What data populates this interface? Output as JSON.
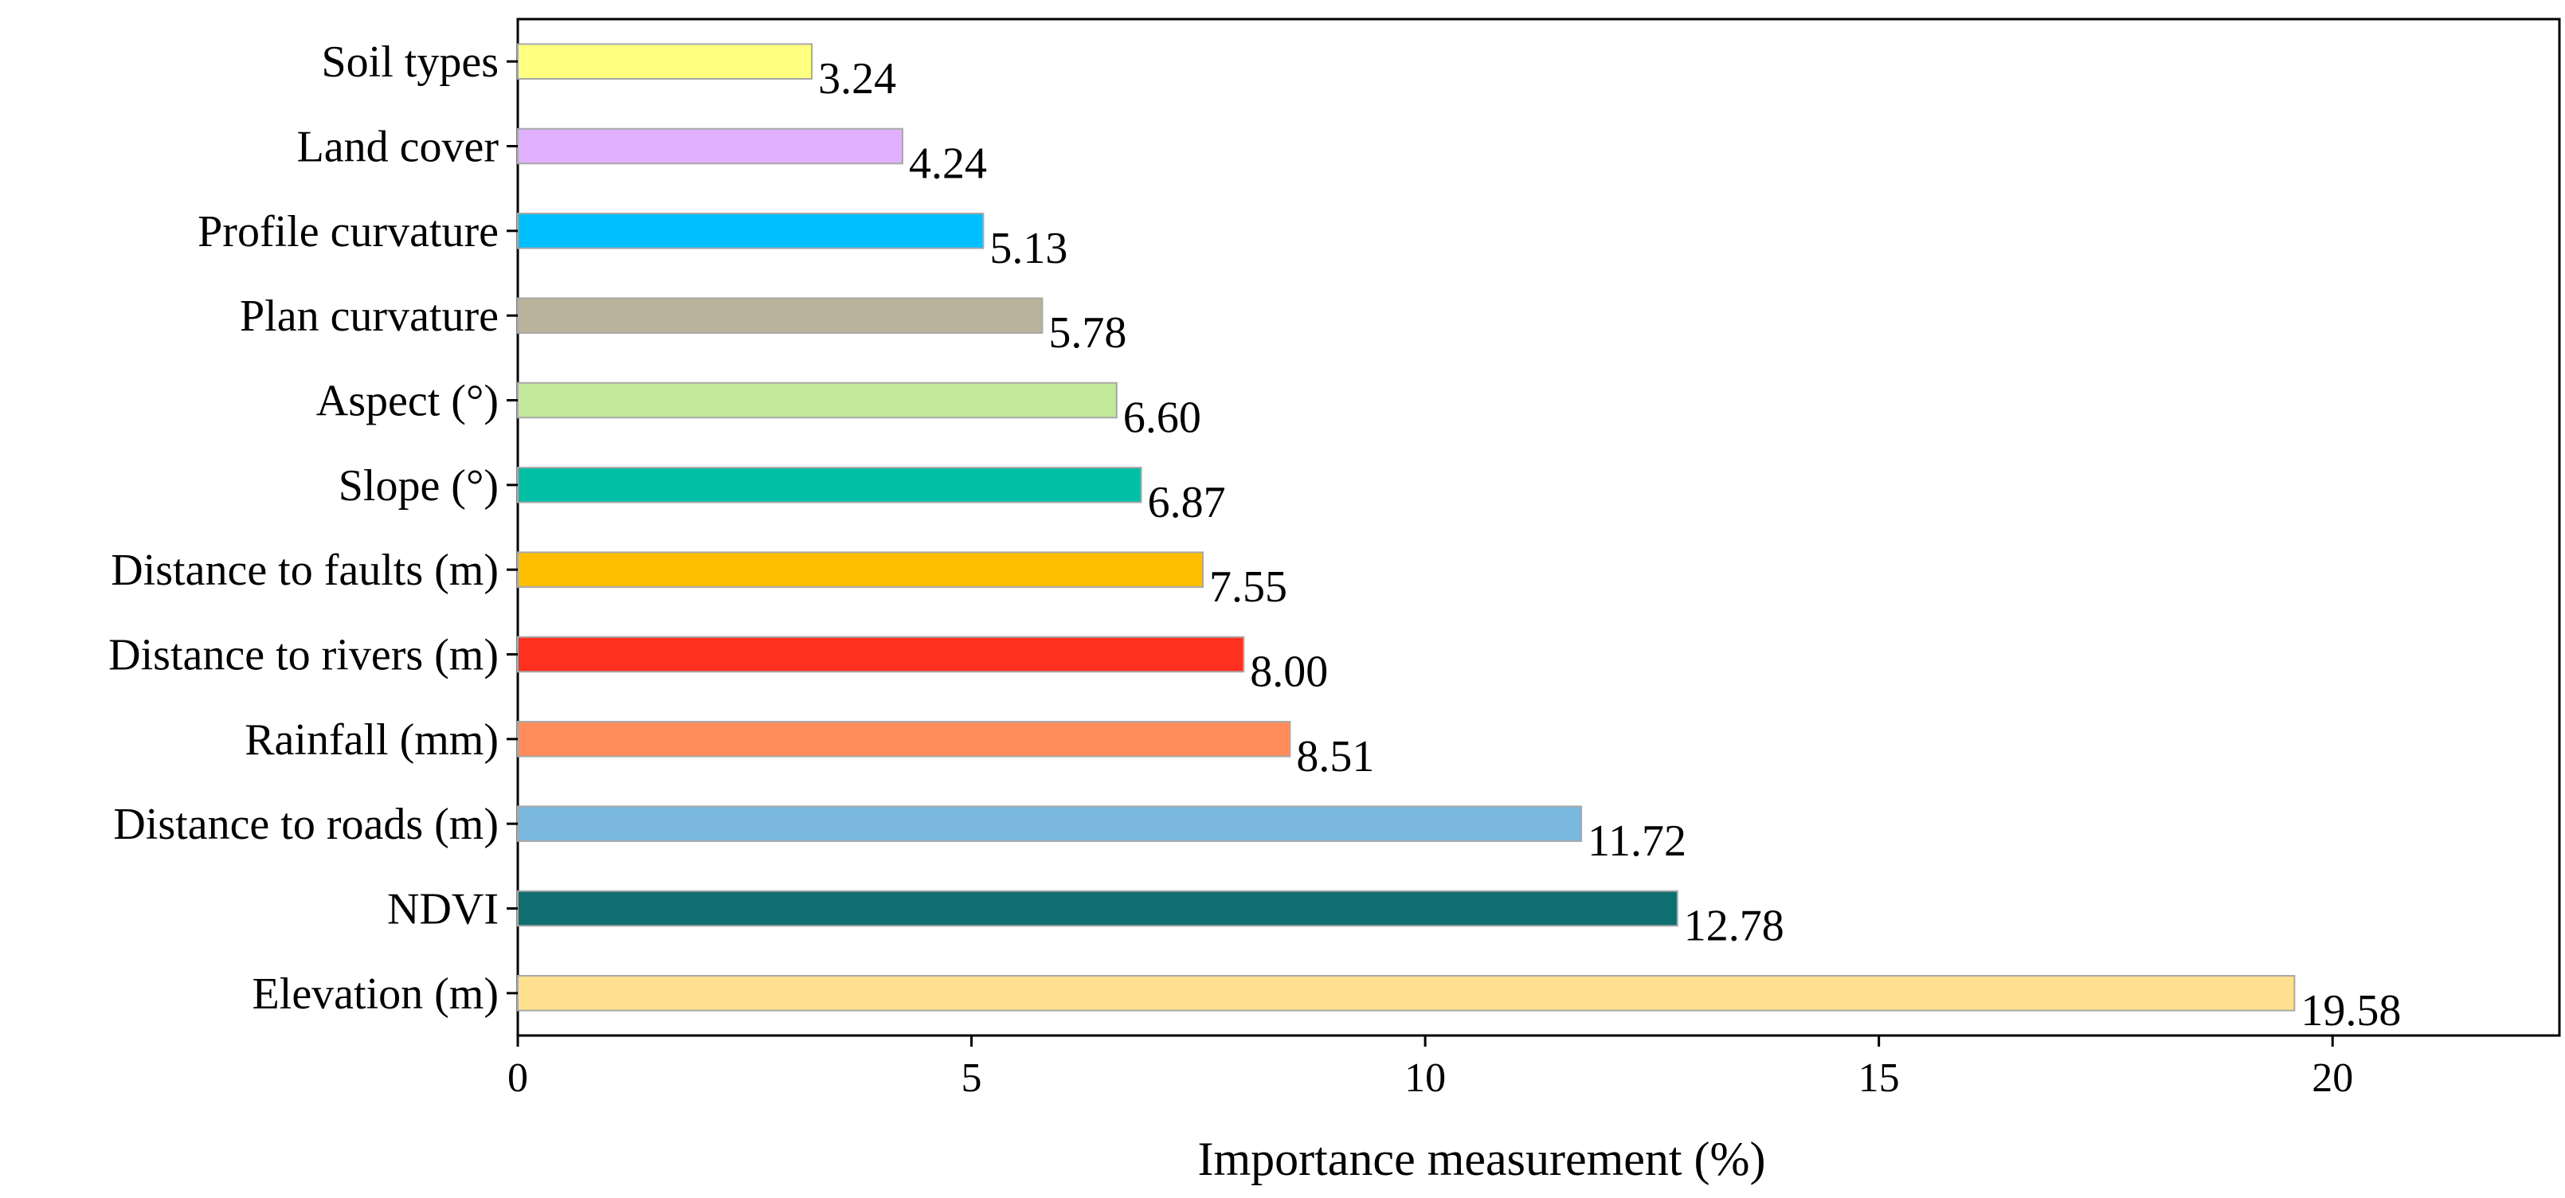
{
  "chart_data": {
    "type": "bar",
    "orientation": "horizontal",
    "title": "",
    "xlabel": "Importance measurement (%)",
    "ylabel": "",
    "xlim": [
      0,
      22.5
    ],
    "xticks": [
      0,
      5,
      10,
      15,
      20
    ],
    "grid": false,
    "legend": "none",
    "categories": [
      "Soil types",
      "Land cover",
      "Profile curvature",
      "Plan curvature",
      "Aspect (°)",
      "Slope (°)",
      "Distance to faults (m)",
      "Distance to rivers (m)",
      "Rainfall (mm)",
      "Distance to roads (m)",
      "NDVI",
      "Elevation (m)"
    ],
    "values": [
      3.24,
      4.24,
      5.13,
      5.78,
      6.6,
      6.87,
      7.55,
      8.0,
      8.51,
      11.72,
      12.78,
      19.58
    ],
    "value_labels": [
      "3.24",
      "4.24",
      "5.13",
      "5.78",
      "6.60",
      "6.87",
      "7.55",
      "8.00",
      "8.51",
      "11.72",
      "12.78",
      "19.58"
    ],
    "colors": [
      "#ffff80",
      "#e0b0ff",
      "#00bfff",
      "#b9b39c",
      "#c2e89a",
      "#00bfa5",
      "#ffbf00",
      "#ff3020",
      "#ff8c5a",
      "#7ab8e0",
      "#0e6e70",
      "#ffe08f"
    ]
  }
}
